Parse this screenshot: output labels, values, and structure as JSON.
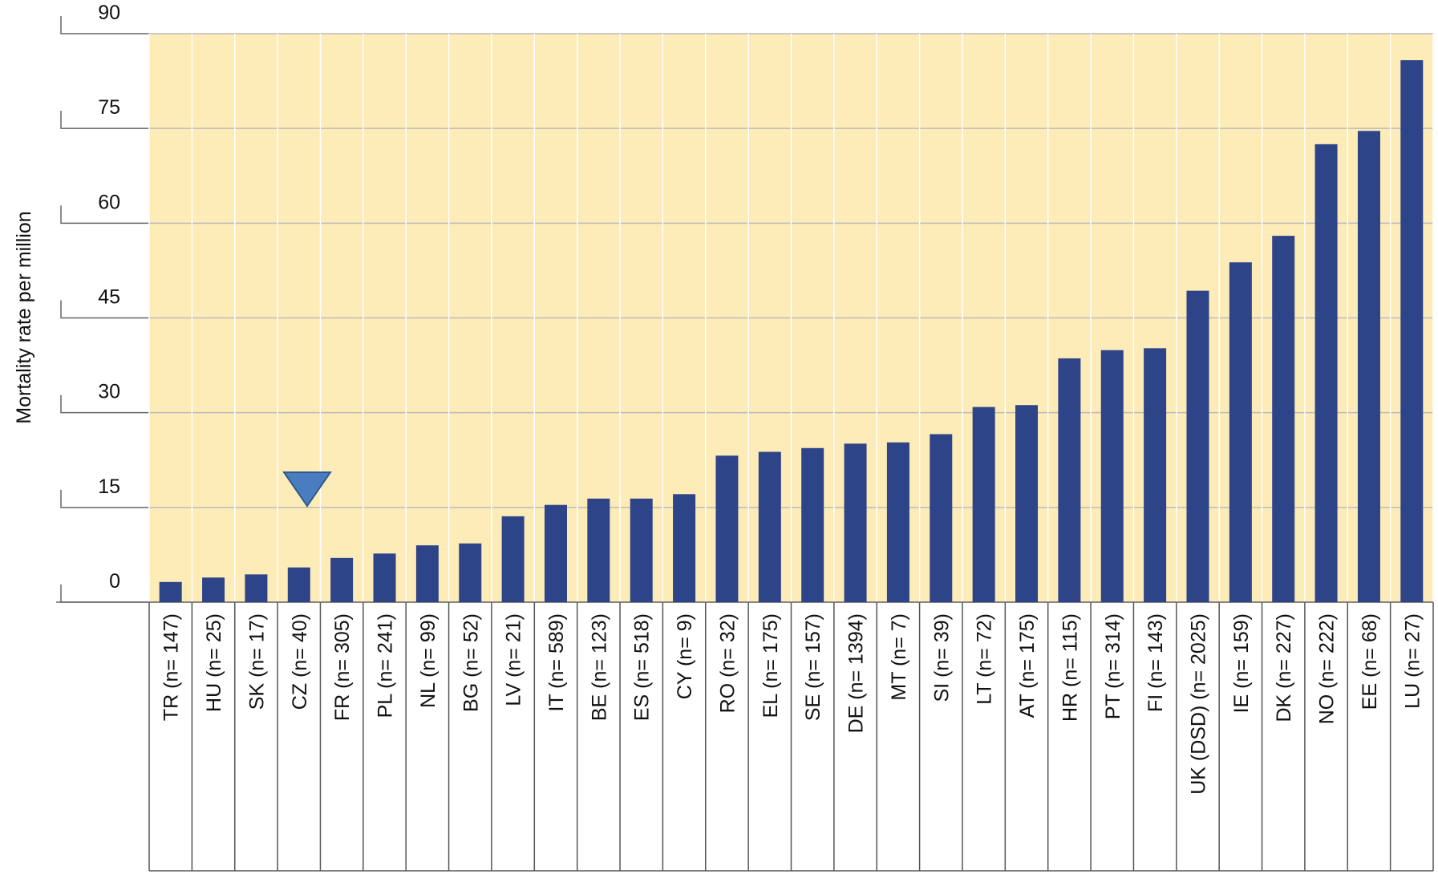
{
  "chart_data": {
    "type": "bar",
    "y_label": "Mortality rate per million",
    "categories": [
      "TR (n= 147)",
      "HU (n= 25)",
      "SK (n= 17)",
      "CZ (n= 40)",
      "FR (n= 305)",
      "PL (n= 241)",
      "NL (n= 99)",
      "BG (n= 52)",
      "LV (n= 21)",
      "IT (n= 589)",
      "BE (n= 123)",
      "ES (n= 518)",
      "CY (n= 9)",
      "RO (n= 32)",
      "EL (n= 175)",
      "SE (n= 157)",
      "DE (n= 1394)",
      "MT (n= 7)",
      "SI (n= 39)",
      "LT (n= 72)",
      "AT (n= 175)",
      "HR (n= 115)",
      "PT (n= 314)",
      "FI (n= 143)",
      "UK (DSD) (n= 2025)",
      "IE (n= 159)",
      "DK (n= 227)",
      "NO (n= 222)",
      "EE (n= 68)",
      "LU (n= 27)"
    ],
    "values": [
      3.2,
      3.9,
      4.4,
      5.5,
      7.0,
      7.7,
      9.0,
      9.3,
      13.6,
      15.4,
      16.4,
      16.4,
      17.1,
      23.2,
      23.8,
      24.4,
      25.1,
      25.3,
      26.6,
      30.9,
      31.2,
      38.6,
      39.9,
      40.2,
      49.3,
      53.8,
      58.0,
      72.5,
      74.6,
      85.8
    ],
    "color": "#2e4488",
    "background": "#fdebb8",
    "ylim": [
      0,
      90
    ],
    "yticks": [
      0,
      15,
      30,
      45,
      60,
      75,
      90
    ],
    "grid": true
  }
}
